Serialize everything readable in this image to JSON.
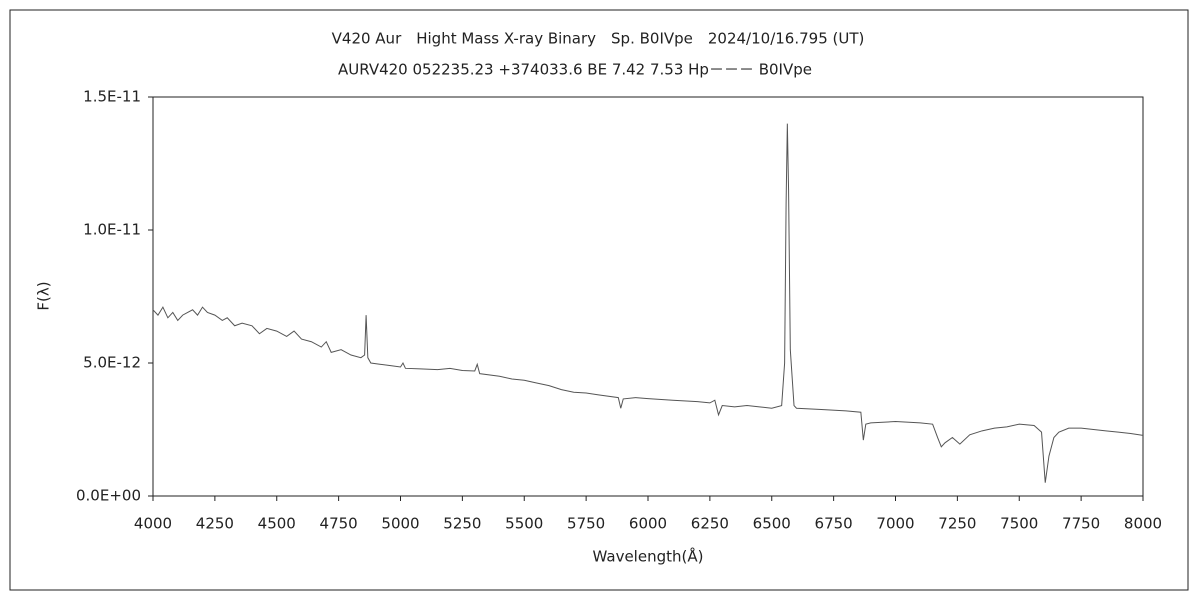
{
  "chart_data": {
    "type": "line",
    "title": "V420 Aur　Hight Mass X-ray Binary　Sp. B0IVpe　2024/10/16.795 (UT)",
    "subtitle": "AURV420 052235.23 +374033.6 BE 7.42 7.53 Hp－－－ B0IVpe",
    "x_label": "Wavelength(Å)",
    "y_label": "F(λ)",
    "color": "#555555",
    "xlim": [
      4000,
      8000
    ],
    "xticks": [
      4000,
      4250,
      4500,
      4750,
      5000,
      5250,
      5500,
      5750,
      6000,
      6250,
      6500,
      6750,
      7000,
      7250,
      7500,
      7750,
      8000
    ],
    "ylim": [
      0,
      1.5e-11
    ],
    "yticks": [
      {
        "value": 0,
        "label": "0.0E+00"
      },
      {
        "value": 5e-12,
        "label": "5.0E-12"
      },
      {
        "value": 1e-11,
        "label": "1.0E-11"
      },
      {
        "value": 1.5e-11,
        "label": "1.5E-11"
      }
    ],
    "x": [
      4000,
      4020,
      4040,
      4060,
      4080,
      4100,
      4120,
      4140,
      4160,
      4180,
      4200,
      4220,
      4250,
      4280,
      4300,
      4330,
      4360,
      4400,
      4430,
      4460,
      4500,
      4540,
      4570,
      4600,
      4640,
      4680,
      4700,
      4720,
      4760,
      4800,
      4840,
      4855,
      4861,
      4868,
      4880,
      4920,
      4960,
      5000,
      5010,
      5020,
      5080,
      5150,
      5200,
      5250,
      5300,
      5310,
      5320,
      5400,
      5450,
      5500,
      5550,
      5600,
      5650,
      5700,
      5750,
      5800,
      5880,
      5890,
      5900,
      5950,
      6000,
      6100,
      6200,
      6250,
      6270,
      6285,
      6300,
      6350,
      6400,
      6450,
      6500,
      6540,
      6552,
      6558,
      6563,
      6568,
      6575,
      6590,
      6600,
      6700,
      6800,
      6860,
      6870,
      6880,
      6900,
      7000,
      7100,
      7150,
      7170,
      7185,
      7200,
      7230,
      7260,
      7300,
      7350,
      7400,
      7450,
      7500,
      7560,
      7590,
      7605,
      7620,
      7640,
      7660,
      7700,
      7750,
      7800,
      7850,
      7900,
      7950,
      8000
    ],
    "values": [
      7e-12,
      6.8e-12,
      7.1e-12,
      6.7e-12,
      6.9e-12,
      6.6e-12,
      6.8e-12,
      6.9e-12,
      7e-12,
      6.8e-12,
      7.1e-12,
      6.9e-12,
      6.8e-12,
      6.6e-12,
      6.7e-12,
      6.4e-12,
      6.5e-12,
      6.4e-12,
      6.1e-12,
      6.3e-12,
      6.2e-12,
      6e-12,
      6.2e-12,
      5.9e-12,
      5.8e-12,
      5.6e-12,
      5.8e-12,
      5.4e-12,
      5.5e-12,
      5.3e-12,
      5.2e-12,
      5.3e-12,
      6.8e-12,
      5.2e-12,
      5e-12,
      4.95e-12,
      4.9e-12,
      4.85e-12,
      5e-12,
      4.8e-12,
      4.78e-12,
      4.75e-12,
      4.8e-12,
      4.72e-12,
      4.7e-12,
      4.95e-12,
      4.6e-12,
      4.5e-12,
      4.4e-12,
      4.35e-12,
      4.25e-12,
      4.15e-12,
      4e-12,
      3.9e-12,
      3.87e-12,
      3.8e-12,
      3.7e-12,
      3.3e-12,
      3.65e-12,
      3.7e-12,
      3.66e-12,
      3.6e-12,
      3.55e-12,
      3.5e-12,
      3.6e-12,
      3.05e-12,
      3.4e-12,
      3.35e-12,
      3.4e-12,
      3.35e-12,
      3.3e-12,
      3.4e-12,
      5e-12,
      1.1e-11,
      1.4e-11,
      1.15e-11,
      5.5e-12,
      3.4e-12,
      3.3e-12,
      3.25e-12,
      3.2e-12,
      3.15e-12,
      2.1e-12,
      2.7e-12,
      2.75e-12,
      2.8e-12,
      2.75e-12,
      2.7e-12,
      2.2e-12,
      1.85e-12,
      2e-12,
      2.2e-12,
      1.95e-12,
      2.3e-12,
      2.45e-12,
      2.55e-12,
      2.6e-12,
      2.7e-12,
      2.65e-12,
      2.4e-12,
      5e-13,
      1.5e-12,
      2.2e-12,
      2.4e-12,
      2.55e-12,
      2.55e-12,
      2.5e-12,
      2.45e-12,
      2.4e-12,
      2.35e-12,
      2.28e-12
    ]
  }
}
